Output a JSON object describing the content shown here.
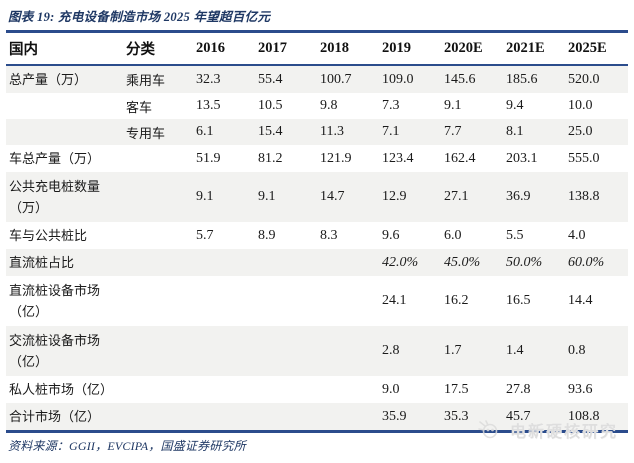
{
  "title": "图表 19: 充电设备制造市场 2025 年望超百亿元",
  "colors": {
    "navy_text": "#1F3864",
    "rule_line": "#2B4C8C",
    "row_stripe": "#F2F2F0",
    "watermark_gray": "#DEDEDE"
  },
  "table": {
    "headers": [
      "国内",
      "分类",
      "2016",
      "2017",
      "2018",
      "2019",
      "2020E",
      "2021E",
      "2025E"
    ],
    "rows": [
      {
        "label": "总产量（万）",
        "category": "乘用车",
        "italic": false,
        "values": [
          "32.3",
          "55.4",
          "100.7",
          "109.0",
          "145.6",
          "185.6",
          "520.0"
        ]
      },
      {
        "label": "",
        "category": "客车",
        "italic": false,
        "values": [
          "13.5",
          "10.5",
          "9.8",
          "7.3",
          "9.1",
          "9.4",
          "10.0"
        ]
      },
      {
        "label": "",
        "category": "专用车",
        "italic": false,
        "values": [
          "6.1",
          "15.4",
          "11.3",
          "7.1",
          "7.7",
          "8.1",
          "25.0"
        ]
      },
      {
        "label": "车总产量（万）",
        "category": "",
        "italic": false,
        "values": [
          "51.9",
          "81.2",
          "121.9",
          "123.4",
          "162.4",
          "203.1",
          "555.0"
        ]
      },
      {
        "label": "公共充电桩数量\n（万）",
        "category": "",
        "italic": false,
        "values": [
          "9.1",
          "9.1",
          "14.7",
          "12.9",
          "27.1",
          "36.9",
          "138.8"
        ]
      },
      {
        "label": "车与公共桩比",
        "category": "",
        "italic": false,
        "values": [
          "5.7",
          "8.9",
          "8.3",
          "9.6",
          "6.0",
          "5.5",
          "4.0"
        ]
      },
      {
        "label": "直流桩占比",
        "category": "",
        "italic": true,
        "values": [
          "",
          "",
          "",
          "42.0%",
          "45.0%",
          "50.0%",
          "60.0%"
        ]
      },
      {
        "label": "直流桩设备市场\n（亿）",
        "category": "",
        "italic": false,
        "values": [
          "",
          "",
          "",
          "24.1",
          "16.2",
          "16.5",
          "14.4"
        ]
      },
      {
        "label": "交流桩设备市场\n（亿）",
        "category": "",
        "italic": false,
        "values": [
          "",
          "",
          "",
          "2.8",
          "1.7",
          "1.4",
          "0.8"
        ]
      },
      {
        "label": "私人桩市场（亿）",
        "category": "",
        "italic": false,
        "values": [
          "",
          "",
          "",
          "9.0",
          "17.5",
          "27.8",
          "93.6"
        ]
      },
      {
        "label": "合计市场（亿）",
        "category": "",
        "italic": false,
        "values": [
          "",
          "",
          "",
          "35.9",
          "35.3",
          "45.7",
          "108.8"
        ]
      }
    ]
  },
  "chart_data": {
    "type": "table",
    "title": "充电设备制造市场2025年望超百亿元",
    "columns": [
      "2016",
      "2017",
      "2018",
      "2019",
      "2020E",
      "2021E",
      "2025E"
    ],
    "series": [
      {
        "name": "总产量（万）- 乘用车",
        "values": [
          32.3,
          55.4,
          100.7,
          109.0,
          145.6,
          185.6,
          520.0
        ]
      },
      {
        "name": "总产量（万）- 客车",
        "values": [
          13.5,
          10.5,
          9.8,
          7.3,
          9.1,
          9.4,
          10.0
        ]
      },
      {
        "name": "总产量（万）- 专用车",
        "values": [
          6.1,
          15.4,
          11.3,
          7.1,
          7.7,
          8.1,
          25.0
        ]
      },
      {
        "name": "车总产量（万）",
        "values": [
          51.9,
          81.2,
          121.9,
          123.4,
          162.4,
          203.1,
          555.0
        ]
      },
      {
        "name": "公共充电桩数量（万）",
        "values": [
          9.1,
          9.1,
          14.7,
          12.9,
          27.1,
          36.9,
          138.8
        ]
      },
      {
        "name": "车与公共桩比",
        "values": [
          5.7,
          8.9,
          8.3,
          9.6,
          6.0,
          5.5,
          4.0
        ]
      },
      {
        "name": "直流桩占比",
        "values": [
          null,
          null,
          null,
          "42.0%",
          "45.0%",
          "50.0%",
          "60.0%"
        ]
      },
      {
        "name": "直流桩设备市场（亿）",
        "values": [
          null,
          null,
          null,
          24.1,
          16.2,
          16.5,
          14.4
        ]
      },
      {
        "name": "交流桩设备市场（亿）",
        "values": [
          null,
          null,
          null,
          2.8,
          1.7,
          1.4,
          0.8
        ]
      },
      {
        "name": "私人桩市场（亿）",
        "values": [
          null,
          null,
          null,
          9.0,
          17.5,
          27.8,
          93.6
        ]
      },
      {
        "name": "合计市场（亿）",
        "values": [
          null,
          null,
          null,
          35.9,
          35.3,
          45.7,
          108.8
        ]
      }
    ]
  },
  "footer": {
    "source": "资料来源：GGII，EVCIPA，国盛证券研究所"
  },
  "watermark": {
    "text": "电新硬核研究",
    "icon": "paw-logo-icon"
  }
}
